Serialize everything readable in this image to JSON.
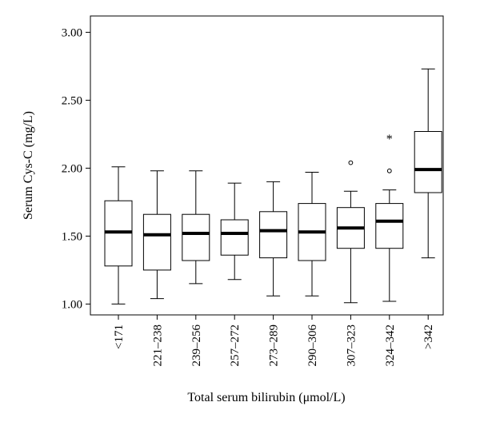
{
  "chart_data": {
    "type": "boxplot",
    "xlabel": "Total serum bilirubin (μmol/L)",
    "ylabel": "Serum Cys-C (mg/L)",
    "ylim": [
      0.92,
      3.12
    ],
    "yticks": [
      "1.00",
      "1.50",
      "2.00",
      "2.50",
      "3.00"
    ],
    "yticks_values": [
      1.0,
      1.5,
      2.0,
      2.5,
      3.0
    ],
    "grid": false,
    "categories": [
      "<171",
      "221–238",
      "239–256",
      "257–272",
      "273–289",
      "290–306",
      "307–323",
      "324–342",
      ">342"
    ],
    "boxes": [
      {
        "min": 1.0,
        "q1": 1.28,
        "median": 1.53,
        "q3": 1.76,
        "max": 2.01,
        "outliers": [],
        "extremes": []
      },
      {
        "min": 1.04,
        "q1": 1.25,
        "median": 1.51,
        "q3": 1.66,
        "max": 1.98,
        "outliers": [],
        "extremes": []
      },
      {
        "min": 1.15,
        "q1": 1.32,
        "median": 1.52,
        "q3": 1.66,
        "max": 1.98,
        "outliers": [],
        "extremes": []
      },
      {
        "min": 1.18,
        "q1": 1.36,
        "median": 1.52,
        "q3": 1.62,
        "max": 1.89,
        "outliers": [],
        "extremes": []
      },
      {
        "min": 1.06,
        "q1": 1.34,
        "median": 1.54,
        "q3": 1.68,
        "max": 1.9,
        "outliers": [],
        "extremes": []
      },
      {
        "min": 1.06,
        "q1": 1.32,
        "median": 1.53,
        "q3": 1.74,
        "max": 1.97,
        "outliers": [],
        "extremes": []
      },
      {
        "min": 1.01,
        "q1": 1.41,
        "median": 1.56,
        "q3": 1.71,
        "max": 1.83,
        "outliers": [
          2.04
        ],
        "extremes": []
      },
      {
        "min": 1.02,
        "q1": 1.41,
        "median": 1.61,
        "q3": 1.74,
        "max": 1.84,
        "outliers": [
          1.98
        ],
        "extremes": [
          2.22
        ]
      },
      {
        "min": 1.34,
        "q1": 1.82,
        "median": 1.99,
        "q3": 2.27,
        "max": 2.73,
        "outliers": [],
        "extremes": []
      }
    ],
    "extreme_marker": "*"
  }
}
